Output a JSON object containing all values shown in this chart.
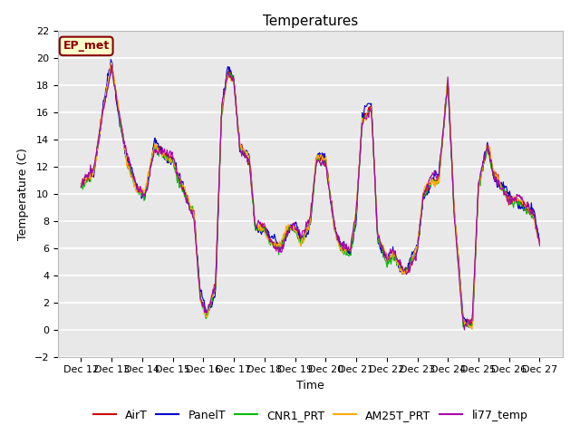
{
  "title": "Temperatures",
  "xlabel": "Time",
  "ylabel": "Temperature (C)",
  "ylim": [
    -2,
    22
  ],
  "yticks": [
    -2,
    0,
    2,
    4,
    6,
    8,
    10,
    12,
    14,
    16,
    18,
    20,
    22
  ],
  "xtick_labels": [
    "Dec 12",
    "Dec 13",
    "Dec 14",
    "Dec 15",
    "Dec 16",
    "Dec 17",
    "Dec 18",
    "Dec 19",
    "Dec 20",
    "Dec 21",
    "Dec 22",
    "Dec 23",
    "Dec 24",
    "Dec 25",
    "Dec 26",
    "Dec 27"
  ],
  "series_colors": {
    "AirT": "#cc0000",
    "PanelT": "#0000cc",
    "CNR1_PRT": "#00bb00",
    "AM25T_PRT": "#ffaa00",
    "li77_temp": "#aa00aa"
  },
  "legend_series": [
    "AirT",
    "PanelT",
    "CNR1_PRT",
    "AM25T_PRT",
    "li77_temp"
  ],
  "annotation_text": "EP_met",
  "annotation_color": "#880000",
  "annotation_bg": "#ffffcc",
  "plot_bg": "#e8e8e8",
  "fig_bg": "#ffffff",
  "grid_color": "#ffffff",
  "title_fontsize": 11,
  "axis_fontsize": 9,
  "tick_fontsize": 8,
  "legend_fontsize": 9
}
